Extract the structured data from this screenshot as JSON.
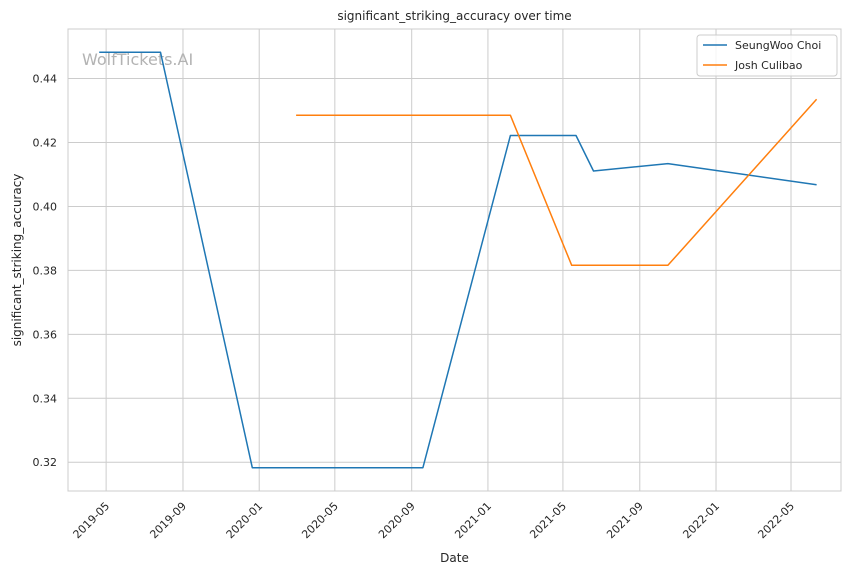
{
  "chart_data": {
    "type": "line",
    "title": "significant_striking_accuracy over time",
    "xlabel": "Date",
    "ylabel": "significant_striking_accuracy",
    "watermark": "WolfTickets.AI",
    "xlim": [
      "2019-03-01",
      "2022-07-20"
    ],
    "ylim": [
      0.311,
      0.4555
    ],
    "grid": true,
    "legend_position": "top-right",
    "x_ticks": [
      {
        "date": "2019-05-01",
        "label": "2019-05"
      },
      {
        "date": "2019-09-01",
        "label": "2019-09"
      },
      {
        "date": "2020-01-01",
        "label": "2020-01"
      },
      {
        "date": "2020-05-01",
        "label": "2020-05"
      },
      {
        "date": "2020-09-01",
        "label": "2020-09"
      },
      {
        "date": "2021-01-01",
        "label": "2021-01"
      },
      {
        "date": "2021-05-01",
        "label": "2021-05"
      },
      {
        "date": "2021-09-01",
        "label": "2021-09"
      },
      {
        "date": "2022-01-01",
        "label": "2022-01"
      },
      {
        "date": "2022-05-01",
        "label": "2022-05"
      }
    ],
    "y_ticks": [
      {
        "value": 0.32,
        "label": "0.32"
      },
      {
        "value": 0.34,
        "label": "0.34"
      },
      {
        "value": 0.36,
        "label": "0.36"
      },
      {
        "value": 0.38,
        "label": "0.38"
      },
      {
        "value": 0.4,
        "label": "0.40"
      },
      {
        "value": 0.42,
        "label": "0.42"
      },
      {
        "value": 0.44,
        "label": "0.44"
      }
    ],
    "series": [
      {
        "name": "SeungWoo Choi",
        "color": "#1f77b4",
        "points": [
          {
            "x": "2019-04-20",
            "y": 0.4482
          },
          {
            "x": "2019-07-27",
            "y": 0.4482
          },
          {
            "x": "2019-12-21",
            "y": 0.3183
          },
          {
            "x": "2020-09-19",
            "y": 0.3183
          },
          {
            "x": "2021-02-06",
            "y": 0.4222
          },
          {
            "x": "2021-05-22",
            "y": 0.4222
          },
          {
            "x": "2021-06-19",
            "y": 0.4111
          },
          {
            "x": "2021-10-16",
            "y": 0.4134
          },
          {
            "x": "2022-06-11",
            "y": 0.4068
          }
        ]
      },
      {
        "name": "Josh Culibao",
        "color": "#ff7f0e",
        "points": [
          {
            "x": "2020-02-29",
            "y": 0.4285
          },
          {
            "x": "2021-02-06",
            "y": 0.4285
          },
          {
            "x": "2021-05-15",
            "y": 0.3816
          },
          {
            "x": "2021-10-16",
            "y": 0.3816
          },
          {
            "x": "2022-06-11",
            "y": 0.4335
          }
        ]
      }
    ]
  }
}
